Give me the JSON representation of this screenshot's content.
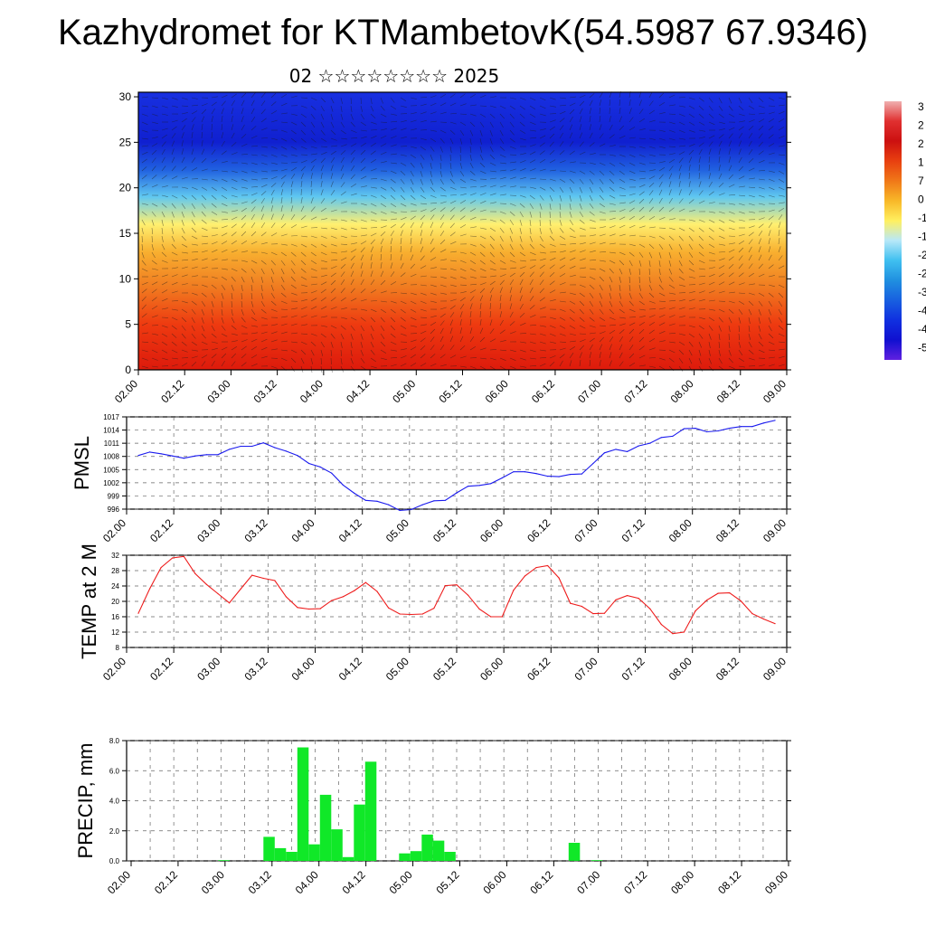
{
  "title": "Kazhydromet for KTMambetovK(54.5987 67.9346)",
  "subtitle": "02 ☆☆☆☆☆☆☆☆ 2025",
  "time_labels": [
    "02.00",
    "02.12",
    "03.00",
    "03.12",
    "04.00",
    "04.12",
    "05.00",
    "05.12",
    "06.00",
    "06.12",
    "07.00",
    "07.12",
    "08.00",
    "08.12",
    "09.00"
  ],
  "chart_data": [
    {
      "type": "heatmap",
      "name": "cross-section",
      "y_ticks": [
        "0",
        "5",
        "10",
        "15",
        "20",
        "25",
        "30"
      ],
      "ylim": [
        0,
        30.5
      ],
      "x_labels_ref": "time_labels",
      "colorbar_labels": [
        "3",
        "2",
        "2",
        "1",
        "7",
        "0",
        "-1",
        "-1",
        "-2",
        "-2",
        "-3",
        "-4",
        "-4",
        "-5"
      ],
      "colorbar_colors": [
        "#f0b0b0",
        "#e03030",
        "#cc1010",
        "#e84010",
        "#f07818",
        "#f8b828",
        "#fff060",
        "#b8e8f8",
        "#40c0f0",
        "#2090e0",
        "#1860e0",
        "#1030e0",
        "#1010d0",
        "#6020e0"
      ],
      "temperature_levels_profile": [
        {
          "level": 0,
          "color": "#dd1a0c"
        },
        {
          "level": 5,
          "color": "#ee3a10"
        },
        {
          "level": 9,
          "color": "#f07a20"
        },
        {
          "level": 13,
          "color": "#f8b030"
        },
        {
          "level": 16,
          "color": "#fff070"
        },
        {
          "level": 19,
          "color": "#60c8f0"
        },
        {
          "level": 22,
          "color": "#2060e0"
        },
        {
          "level": 25,
          "color": "#1020d0"
        },
        {
          "level": 30.5,
          "color": "#1830e0"
        }
      ]
    },
    {
      "type": "line",
      "ylabel": "PMSL",
      "y_ticks": [
        "996",
        "999",
        "1002",
        "1005",
        "1008",
        "1011",
        "1014",
        "1017"
      ],
      "ylim": [
        996,
        1017
      ],
      "x_labels_ref": "time_labels",
      "color": "#1a1aee",
      "x": [
        0,
        3,
        6,
        9,
        12,
        15,
        18,
        21,
        24,
        27,
        30,
        33,
        36,
        39,
        42,
        45,
        48,
        51,
        54,
        57,
        60,
        63,
        66,
        69,
        72,
        75,
        78,
        81,
        84,
        87,
        90,
        93,
        96,
        99,
        102,
        105,
        108,
        111,
        114,
        117,
        120,
        123,
        126,
        129,
        132,
        135,
        138,
        141,
        144,
        147,
        150,
        153,
        156,
        159,
        162,
        165,
        168
      ],
      "y": [
        1008.2,
        1009.0,
        1008.6,
        1008.1,
        1007.6,
        1008.1,
        1008.4,
        1008.4,
        1009.6,
        1010.3,
        1010.3,
        1011.1,
        1010.0,
        1009.2,
        1008.2,
        1006.4,
        1005.6,
        1004.2,
        1001.5,
        999.6,
        998.0,
        997.8,
        997.0,
        995.7,
        995.9,
        997.0,
        997.9,
        998.0,
        999.7,
        1001.2,
        1001.4,
        1001.8,
        1003.1,
        1004.5,
        1004.5,
        1004.1,
        1003.5,
        1003.4,
        1003.9,
        1004.0,
        1006.4,
        1008.8,
        1009.6,
        1009.1,
        1010.4,
        1011.0,
        1012.3,
        1012.6,
        1014.3,
        1014.4,
        1013.6,
        1013.8,
        1014.4,
        1014.8,
        1014.8,
        1015.6,
        1016.2
      ]
    },
    {
      "type": "line",
      "ylabel": "TEMP at 2 M",
      "y_ticks": [
        "8",
        "12",
        "16",
        "20",
        "24",
        "28",
        "32"
      ],
      "ylim": [
        8,
        32
      ],
      "x_labels_ref": "time_labels",
      "color": "#ee1c1c",
      "x": [
        0,
        3,
        6,
        9,
        12,
        15,
        18,
        21,
        24,
        27,
        30,
        33,
        36,
        39,
        42,
        45,
        48,
        51,
        54,
        57,
        60,
        63,
        66,
        69,
        72,
        75,
        78,
        81,
        84,
        87,
        90,
        93,
        96,
        99,
        102,
        105,
        108,
        111,
        114,
        117,
        120,
        123,
        126,
        129,
        132,
        135,
        138,
        141,
        144,
        147,
        150,
        153,
        156,
        159,
        162,
        165,
        168
      ],
      "y": [
        16.9,
        23.3,
        28.8,
        31.3,
        31.7,
        27.2,
        24.4,
        22.0,
        19.6,
        23.2,
        26.8,
        26.0,
        25.4,
        21.2,
        18.4,
        18.0,
        18.1,
        20.2,
        21.2,
        22.8,
        24.9,
        22.6,
        18.3,
        16.7,
        16.6,
        16.7,
        18.2,
        24.1,
        24.3,
        21.6,
        18.0,
        16.0,
        16.0,
        22.9,
        26.6,
        28.8,
        29.3,
        26.1,
        19.5,
        18.7,
        16.8,
        16.9,
        20.4,
        21.5,
        20.8,
        18.1,
        14.0,
        11.6,
        12.0,
        17.5,
        20.3,
        22.1,
        22.2,
        20.1,
        16.8,
        15.4,
        14.2
      ]
    },
    {
      "type": "bar",
      "ylabel": "PRECIP, mm",
      "y_ticks": [
        "0.0",
        "2.0",
        "4.0",
        "6.0",
        "8.0"
      ],
      "ylim": [
        0,
        8
      ],
      "x_labels_ref": "time_labels",
      "color": "#10e828",
      "x": [
        21,
        33,
        36,
        39,
        42,
        45,
        48,
        51,
        54,
        57,
        60,
        69,
        72,
        75,
        78,
        81,
        114,
        120
      ],
      "values": [
        0.05,
        1.6,
        0.85,
        0.6,
        7.55,
        1.1,
        4.4,
        2.1,
        0.25,
        3.75,
        6.6,
        0.5,
        0.65,
        1.75,
        1.35,
        0.6,
        1.2,
        0.05
      ]
    }
  ]
}
